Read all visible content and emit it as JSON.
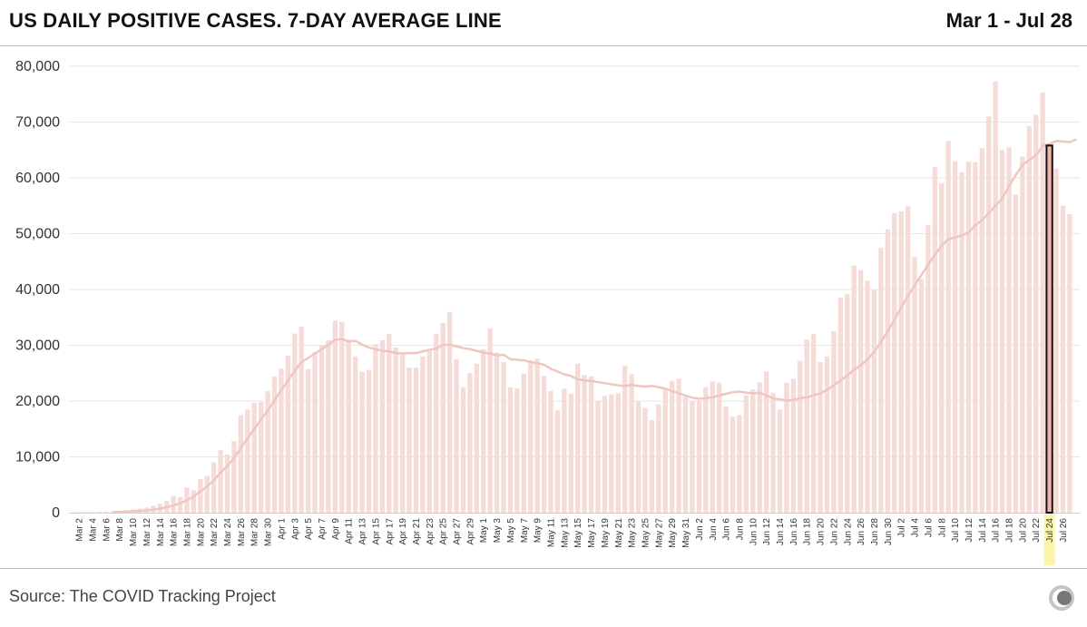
{
  "header": {
    "title": "US DAILY POSITIVE CASES. 7-DAY AVERAGE LINE",
    "date_range": "Mar 1 - Jul 28"
  },
  "footer": {
    "source": "Source: The COVID Tracking Project"
  },
  "colors": {
    "bar": "#f5dcd8",
    "line": "#efc6c0",
    "highlight_bar": "#f2b3ab",
    "highlight_outline": "#111111",
    "highlight_label_bg": "#fbf5a9",
    "gridline": "#e6e6e6"
  },
  "chart_data": {
    "type": "bar",
    "start_date": "Mar 1",
    "days": 150,
    "ylim": [
      0,
      80000
    ],
    "yticks": [
      0,
      10000,
      20000,
      30000,
      40000,
      50000,
      60000,
      70000,
      80000
    ],
    "ytick_labels": [
      "0",
      "10,000",
      "20,000",
      "30,000",
      "40,000",
      "50,000",
      "60,000",
      "70,000",
      "80,000"
    ],
    "xtick_labels": [
      "Mar 2",
      "Mar 4",
      "Mar 6",
      "Mar 8",
      "Mar 10",
      "Mar 12",
      "Mar 14",
      "Mar 16",
      "Mar 18",
      "Mar 20",
      "Mar 22",
      "Mar 24",
      "Mar 26",
      "Mar 28",
      "Mar 30",
      "Apr 1",
      "Apr 3",
      "Apr 5",
      "Apr 7",
      "Apr 9",
      "Apr 11",
      "Apr 13",
      "Apr 15",
      "Apr 17",
      "Apr 19",
      "Apr 21",
      "Apr 23",
      "Apr 25",
      "Apr 27",
      "Apr 29",
      "May 1",
      "May 3",
      "May 5",
      "May 7",
      "May 9",
      "May 11",
      "May 13",
      "May 15",
      "May 17",
      "May 19",
      "May 21",
      "May 23",
      "May 25",
      "May 27",
      "May 29",
      "May 31",
      "Jun 2",
      "Jun 4",
      "Jun 6",
      "Jun 8",
      "Jun 10",
      "Jun 12",
      "Jun 14",
      "Jun 16",
      "Jun 18",
      "Jun 20",
      "Jun 22",
      "Jun 24",
      "Jun 26",
      "Jun 28",
      "Jun 30",
      "Jul 2",
      "Jul 4",
      "Jul 6",
      "Jul 8",
      "Jul 10",
      "Jul 12",
      "Jul 14",
      "Jul 16",
      "Jul 18",
      "Jul 20",
      "Jul 22",
      "Jul 24",
      "Jul 26"
    ],
    "highlight_date": "Jul 24",
    "series": [
      {
        "type": "bar",
        "values": [
          80,
          90,
          100,
          120,
          150,
          180,
          250,
          320,
          430,
          570,
          720,
          950,
          1200,
          1600,
          2100,
          3000,
          2800,
          4500,
          4000,
          6000,
          6600,
          9000,
          11200,
          10400,
          12800,
          17500,
          18500,
          19700,
          19800,
          21800,
          24400,
          25800,
          28100,
          32100,
          33300,
          25700,
          28800,
          30000,
          30900,
          34400,
          34200,
          31000,
          28000,
          25300,
          25600,
          30200,
          30900,
          32000,
          29600,
          28800,
          26000,
          26000,
          28000,
          29000,
          32000,
          34000,
          36000,
          27500,
          22500,
          25000,
          26700,
          29300,
          33000,
          28700,
          27000,
          22500,
          22300,
          24900,
          27300,
          27600,
          24500,
          21800,
          18400,
          22200,
          21300,
          26700,
          24700,
          24400,
          20100,
          20900,
          21200,
          21400,
          26300,
          24800,
          19900,
          18800,
          16600,
          19400,
          22300,
          23600,
          24000,
          20800,
          20000,
          20100,
          22500,
          23500,
          23300,
          19000,
          17200,
          17500,
          21000,
          22100,
          23400,
          25300,
          21500,
          18500,
          23300,
          24000,
          27200,
          31000,
          32000,
          27000,
          28000,
          32500,
          38500,
          39200,
          44300,
          43500,
          41600,
          40000,
          47500,
          50800,
          53700,
          54000,
          54900,
          45800,
          41900,
          51500,
          62000,
          59000,
          66600,
          63000,
          61000,
          62900,
          62800,
          65300,
          71000,
          77300,
          65000,
          65500,
          57000,
          63800,
          69300,
          71300,
          75300,
          65800,
          61700,
          55000,
          53500,
          null
        ]
      },
      {
        "type": "line",
        "values": [
          null,
          null,
          null,
          null,
          null,
          null,
          100,
          130,
          170,
          220,
          300,
          400,
          540,
          730,
          970,
          1270,
          1680,
          2230,
          2880,
          3800,
          4700,
          5800,
          7200,
          8400,
          9800,
          11600,
          13300,
          15000,
          16700,
          18300,
          20100,
          21900,
          23700,
          25400,
          27000,
          27700,
          28500,
          29300,
          30100,
          31000,
          31100,
          30700,
          30800,
          30100,
          29600,
          29300,
          29000,
          28900,
          28600,
          28500,
          28600,
          28600,
          28900,
          29200,
          29400,
          30100,
          30100,
          29800,
          29500,
          29300,
          29000,
          28700,
          28500,
          28200,
          28300,
          27500,
          27400,
          27300,
          27000,
          26800,
          26500,
          25800,
          25300,
          24800,
          24500,
          23900,
          23700,
          23600,
          23400,
          23200,
          23000,
          22800,
          22700,
          22900,
          22700,
          22600,
          22700,
          22500,
          22200,
          21800,
          21400,
          21000,
          20600,
          20400,
          20500,
          20700,
          21000,
          21300,
          21600,
          21700,
          21500,
          21400,
          21500,
          21000,
          20500,
          20300,
          20100,
          20200,
          20500,
          20700,
          21000,
          21400,
          22000,
          22800,
          23700,
          24600,
          25600,
          26400,
          27500,
          28800,
          30600,
          32500,
          34600,
          36800,
          38800,
          40700,
          42600,
          44400,
          46200,
          47800,
          49000,
          49300,
          49700,
          50200,
          51500,
          52400,
          53700,
          55000,
          56300,
          58500,
          60500,
          62300,
          63200,
          64000,
          65700,
          66100,
          66600,
          66500,
          66400,
          66900
        ]
      }
    ]
  }
}
